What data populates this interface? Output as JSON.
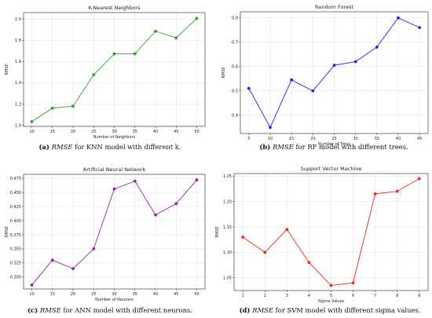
{
  "chart_data": [
    {
      "type": "line",
      "panel": "a",
      "title": "K-Nearest Neighbors",
      "xlabel": "Number of Neighbors",
      "ylabel": "RMSE",
      "x": [
        10,
        15,
        20,
        25,
        30,
        35,
        40,
        45,
        50
      ],
      "series": [
        {
          "values": [
            1.035,
            1.162,
            1.18,
            1.475,
            1.672,
            1.672,
            1.885,
            1.822,
            2.005
          ],
          "color": "#2ca02c"
        }
      ],
      "xlim": [
        8,
        52
      ],
      "ylim": [
        0.99,
        2.06
      ],
      "xticks": [
        10,
        15,
        20,
        25,
        30,
        35,
        40,
        45,
        50
      ],
      "yticks": [
        1.0,
        1.2,
        1.4,
        1.6,
        1.8,
        2.0
      ],
      "ytick_labels": [
        "1.0",
        "1.2",
        "1.4",
        "1.6",
        "1.8",
        "2.0"
      ],
      "grid": true,
      "caption": {
        "label": "(a)",
        "metric": "RMSE",
        "text": "for KNN model with different k."
      }
    },
    {
      "type": "line",
      "panel": "b",
      "title": "Random Forest",
      "xlabel": "Number of Trees",
      "ylabel": "RMSE",
      "x": [
        5,
        10,
        15,
        20,
        25,
        30,
        35,
        40,
        45
      ],
      "series": [
        {
          "values": [
            0.51,
            0.35,
            0.545,
            0.5,
            0.605,
            0.62,
            0.68,
            0.8,
            0.76
          ],
          "color": "#1f1fff"
        }
      ],
      "xlim": [
        3,
        47
      ],
      "ylim": [
        0.325,
        0.825
      ],
      "xticks": [
        5,
        10,
        15,
        20,
        25,
        30,
        35,
        40,
        45
      ],
      "yticks": [
        0.4,
        0.5,
        0.6,
        0.7,
        0.8
      ],
      "ytick_labels": [
        "0.4",
        "0.5",
        "0.6",
        "0.7",
        "0.8"
      ],
      "grid": true,
      "caption": {
        "label": "(b)",
        "metric": "RMSE",
        "text": "for RF model with different trees."
      }
    },
    {
      "type": "line",
      "panel": "c",
      "title": "Artificial Neural Network",
      "xlabel": "Number of Neurons",
      "ylabel": "RMSE",
      "x": [
        10,
        15,
        20,
        25,
        30,
        35,
        40,
        45,
        50
      ],
      "series": [
        {
          "values": [
            0.286,
            0.33,
            0.315,
            0.35,
            0.456,
            0.47,
            0.41,
            0.43,
            0.472
          ],
          "color": "#9b1fa8"
        }
      ],
      "xlim": [
        8,
        52
      ],
      "ylim": [
        0.279,
        0.482
      ],
      "xticks": [
        10,
        15,
        20,
        25,
        30,
        35,
        40,
        45,
        50
      ],
      "yticks": [
        0.3,
        0.325,
        0.35,
        0.375,
        0.4,
        0.425,
        0.45,
        0.475
      ],
      "ytick_labels": [
        "0.300",
        "0.325",
        "0.350",
        "0.375",
        "0.400",
        "0.425",
        "0.450",
        "0.475"
      ],
      "grid": true,
      "caption": {
        "label": "(c)",
        "metric": "RMSE",
        "text": "for ANN model with different neurons."
      }
    },
    {
      "type": "line",
      "panel": "d",
      "title": "Support Vector Machine",
      "xlabel": "Sigma Values",
      "ylabel": "RMSE",
      "x": [
        1,
        2,
        3,
        4,
        5,
        6,
        7,
        8,
        9
      ],
      "series": [
        {
          "values": [
            1.13,
            1.1,
            1.145,
            1.08,
            1.035,
            1.04,
            1.215,
            1.22,
            1.245
          ],
          "color": "#ff2020"
        }
      ],
      "xlim": [
        0.6,
        9.4
      ],
      "ylim": [
        1.025,
        1.255
      ],
      "xticks": [
        1,
        2,
        3,
        4,
        5,
        6,
        7,
        8,
        9
      ],
      "yticks": [
        1.05,
        1.1,
        1.15,
        1.2,
        1.25
      ],
      "ytick_labels": [
        "1.05",
        "1.10",
        "1.15",
        "1.20",
        "1.25"
      ],
      "grid": true,
      "caption": {
        "label": "(d)",
        "metric": "RMSE",
        "text": "for SVM model with different sigma values."
      }
    }
  ]
}
